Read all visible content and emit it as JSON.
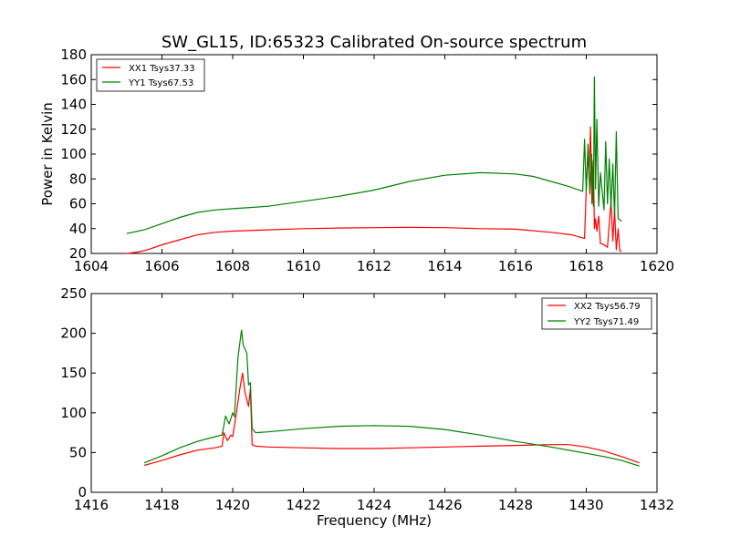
{
  "figure": {
    "title": "SW_GL15, ID:65323 Calibrated On-source spectrum"
  },
  "chart_data": [
    {
      "type": "line",
      "title": "SW_GL15, ID:65323 Calibrated On-source spectrum",
      "xlabel": "",
      "ylabel": "Power in Kelvin",
      "xlim": [
        1604,
        1620
      ],
      "ylim": [
        20,
        180
      ],
      "xticks": [
        1604,
        1606,
        1608,
        1610,
        1612,
        1614,
        1616,
        1618,
        1620
      ],
      "yticks": [
        20,
        40,
        60,
        80,
        100,
        120,
        140,
        160,
        180
      ],
      "xtick_labels": [
        "1604",
        "1606",
        "1608",
        "1610",
        "1612",
        "1614",
        "1616",
        "1618",
        "1620"
      ],
      "ytick_labels": [
        "20",
        "40",
        "60",
        "80",
        "100",
        "120",
        "140",
        "160",
        "180"
      ],
      "grid": false,
      "legend_position": "top-left",
      "series": [
        {
          "name": "XX1 Tsys37.33",
          "color": "#ff0000",
          "x": [
            1605.0,
            1605.3,
            1605.6,
            1606.0,
            1606.5,
            1607.0,
            1607.5,
            1608.0,
            1609.0,
            1610.0,
            1611.0,
            1612.0,
            1613.0,
            1614.0,
            1615.0,
            1616.0,
            1617.0,
            1617.6,
            1617.95,
            1618.0,
            1618.05,
            1618.08,
            1618.12,
            1618.16,
            1618.2,
            1618.23,
            1618.26,
            1618.3,
            1618.35,
            1618.4,
            1618.5,
            1618.6,
            1618.7,
            1618.75,
            1618.8,
            1618.85,
            1618.9,
            1618.95,
            1619.0
          ],
          "y": [
            20,
            21,
            23,
            27,
            31,
            35,
            37,
            38,
            39,
            40,
            40.5,
            40.8,
            41,
            40.8,
            40,
            39.5,
            37,
            35,
            32,
            72,
            102,
            80,
            122,
            60,
            95,
            40,
            48,
            38,
            50,
            28,
            27,
            25,
            62,
            30,
            55,
            23,
            40,
            22,
            22
          ]
        },
        {
          "name": "YY1 Tsys67.53",
          "color": "#008000",
          "x": [
            1605.0,
            1605.5,
            1606.0,
            1606.5,
            1607.0,
            1607.5,
            1608.0,
            1608.5,
            1609.0,
            1610.0,
            1611.0,
            1612.0,
            1613.0,
            1614.0,
            1615.0,
            1616.0,
            1616.5,
            1617.0,
            1617.5,
            1617.9,
            1617.95,
            1618.0,
            1618.05,
            1618.1,
            1618.15,
            1618.2,
            1618.23,
            1618.26,
            1618.3,
            1618.35,
            1618.4,
            1618.5,
            1618.55,
            1618.6,
            1618.65,
            1618.7,
            1618.75,
            1618.8,
            1618.85,
            1618.9,
            1618.95,
            1619.0
          ],
          "y": [
            36,
            39,
            44,
            49,
            53,
            55,
            56,
            57,
            58,
            62,
            66,
            71,
            78,
            83,
            85,
            84,
            82,
            78,
            74,
            70,
            112,
            70,
            108,
            68,
            100,
            58,
            162,
            72,
            128,
            58,
            85,
            55,
            110,
            60,
            96,
            57,
            92,
            50,
            118,
            48,
            47,
            46
          ]
        }
      ]
    },
    {
      "type": "line",
      "title": "",
      "xlabel": "Frequency (MHz)",
      "ylabel": "",
      "xlim": [
        1416,
        1432
      ],
      "ylim": [
        0,
        250
      ],
      "xticks": [
        1416,
        1418,
        1420,
        1422,
        1424,
        1426,
        1428,
        1430,
        1432
      ],
      "yticks": [
        0,
        50,
        100,
        150,
        200,
        250
      ],
      "xtick_labels": [
        "1416",
        "1418",
        "1420",
        "1422",
        "1424",
        "1426",
        "1428",
        "1430",
        "1432"
      ],
      "ytick_labels": [
        "0",
        "50",
        "100",
        "150",
        "200",
        "250"
      ],
      "grid": false,
      "legend_position": "top-right",
      "series": [
        {
          "name": "XX2 Tsys56.79",
          "color": "#ff0000",
          "x": [
            1417.5,
            1418.0,
            1418.5,
            1419.0,
            1419.5,
            1419.7,
            1419.75,
            1419.85,
            1419.95,
            1420.0,
            1420.1,
            1420.2,
            1420.28,
            1420.35,
            1420.45,
            1420.5,
            1420.55,
            1420.65,
            1421.0,
            1422.0,
            1423.0,
            1424.0,
            1425.0,
            1426.0,
            1427.0,
            1428.0,
            1429.0,
            1429.5,
            1430.0,
            1430.5,
            1431.0,
            1431.5
          ],
          "y": [
            34,
            40,
            47,
            53,
            56,
            58,
            75,
            65,
            72,
            70,
            98,
            130,
            150,
            125,
            108,
            130,
            60,
            58,
            57,
            56,
            55,
            55,
            56,
            57,
            58,
            59,
            60,
            60,
            57,
            52,
            45,
            37
          ]
        },
        {
          "name": "YY2 Tsys71.49",
          "color": "#008000",
          "x": [
            1417.5,
            1418.0,
            1418.5,
            1419.0,
            1419.5,
            1419.7,
            1419.8,
            1419.9,
            1420.0,
            1420.05,
            1420.15,
            1420.25,
            1420.3,
            1420.4,
            1420.45,
            1420.5,
            1420.55,
            1420.65,
            1421.0,
            1422.0,
            1423.0,
            1424.0,
            1425.0,
            1426.0,
            1427.0,
            1428.0,
            1429.0,
            1430.0,
            1430.5,
            1431.0,
            1431.5
          ],
          "y": [
            37,
            46,
            56,
            64,
            70,
            72,
            96,
            86,
            100,
            95,
            170,
            204,
            185,
            175,
            135,
            138,
            80,
            75,
            76,
            80,
            83,
            84,
            83,
            79,
            72,
            64,
            57,
            49,
            45,
            40,
            33
          ]
        }
      ]
    }
  ]
}
